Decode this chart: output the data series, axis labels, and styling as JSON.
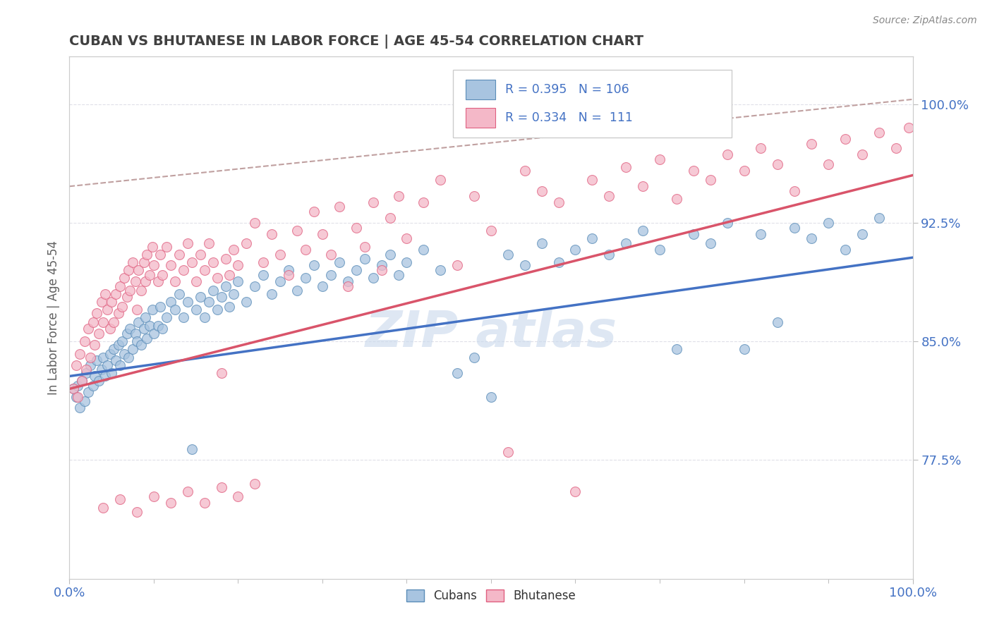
{
  "title": "CUBAN VS BHUTANESE IN LABOR FORCE | AGE 45-54 CORRELATION CHART",
  "source_text": "Source: ZipAtlas.com",
  "ylabel": "In Labor Force | Age 45-54",
  "xlim": [
    0.0,
    1.0
  ],
  "ylim": [
    0.7,
    1.03
  ],
  "right_yticks": [
    0.775,
    0.85,
    0.925,
    1.0
  ],
  "right_yticklabels": [
    "77.5%",
    "85.0%",
    "92.5%",
    "100.0%"
  ],
  "bottom_xticklabels": [
    "0.0%",
    "100.0%"
  ],
  "blue_color": "#A8C4E0",
  "blue_edge_color": "#5B8DB8",
  "pink_color": "#F4B8C8",
  "pink_edge_color": "#E06080",
  "blue_line_color": "#4472C4",
  "pink_line_color": "#D9546A",
  "dashed_line_color": "#C0A0A0",
  "watermark_color": "#C8D8EC",
  "background_color": "#FFFFFF",
  "title_color": "#404040",
  "axis_label_color": "#606060",
  "tick_color": "#4472C4",
  "grid_color": "#E0E0E8",
  "blue_reg": {
    "slope": 0.075,
    "intercept": 0.828
  },
  "pink_reg": {
    "slope": 0.135,
    "intercept": 0.82
  },
  "dashed_reg": {
    "slope": 0.055,
    "intercept": 0.948
  },
  "blue_scatter": [
    [
      0.005,
      0.82
    ],
    [
      0.008,
      0.815
    ],
    [
      0.01,
      0.822
    ],
    [
      0.012,
      0.808
    ],
    [
      0.015,
      0.825
    ],
    [
      0.018,
      0.812
    ],
    [
      0.02,
      0.83
    ],
    [
      0.022,
      0.818
    ],
    [
      0.025,
      0.835
    ],
    [
      0.028,
      0.822
    ],
    [
      0.03,
      0.828
    ],
    [
      0.032,
      0.838
    ],
    [
      0.035,
      0.825
    ],
    [
      0.038,
      0.832
    ],
    [
      0.04,
      0.84
    ],
    [
      0.042,
      0.828
    ],
    [
      0.045,
      0.835
    ],
    [
      0.048,
      0.842
    ],
    [
      0.05,
      0.83
    ],
    [
      0.052,
      0.845
    ],
    [
      0.055,
      0.838
    ],
    [
      0.058,
      0.848
    ],
    [
      0.06,
      0.835
    ],
    [
      0.062,
      0.85
    ],
    [
      0.065,
      0.842
    ],
    [
      0.068,
      0.855
    ],
    [
      0.07,
      0.84
    ],
    [
      0.072,
      0.858
    ],
    [
      0.075,
      0.845
    ],
    [
      0.078,
      0.855
    ],
    [
      0.08,
      0.85
    ],
    [
      0.082,
      0.862
    ],
    [
      0.085,
      0.848
    ],
    [
      0.088,
      0.858
    ],
    [
      0.09,
      0.865
    ],
    [
      0.092,
      0.852
    ],
    [
      0.095,
      0.86
    ],
    [
      0.098,
      0.87
    ],
    [
      0.1,
      0.855
    ],
    [
      0.105,
      0.86
    ],
    [
      0.108,
      0.872
    ],
    [
      0.11,
      0.858
    ],
    [
      0.115,
      0.865
    ],
    [
      0.12,
      0.875
    ],
    [
      0.125,
      0.87
    ],
    [
      0.13,
      0.88
    ],
    [
      0.135,
      0.865
    ],
    [
      0.14,
      0.875
    ],
    [
      0.145,
      0.782
    ],
    [
      0.15,
      0.87
    ],
    [
      0.155,
      0.878
    ],
    [
      0.16,
      0.865
    ],
    [
      0.165,
      0.875
    ],
    [
      0.17,
      0.882
    ],
    [
      0.175,
      0.87
    ],
    [
      0.18,
      0.878
    ],
    [
      0.185,
      0.885
    ],
    [
      0.19,
      0.872
    ],
    [
      0.195,
      0.88
    ],
    [
      0.2,
      0.888
    ],
    [
      0.21,
      0.875
    ],
    [
      0.22,
      0.885
    ],
    [
      0.23,
      0.892
    ],
    [
      0.24,
      0.88
    ],
    [
      0.25,
      0.888
    ],
    [
      0.26,
      0.895
    ],
    [
      0.27,
      0.882
    ],
    [
      0.28,
      0.89
    ],
    [
      0.29,
      0.898
    ],
    [
      0.3,
      0.885
    ],
    [
      0.31,
      0.892
    ],
    [
      0.32,
      0.9
    ],
    [
      0.33,
      0.888
    ],
    [
      0.34,
      0.895
    ],
    [
      0.35,
      0.902
    ],
    [
      0.36,
      0.89
    ],
    [
      0.37,
      0.898
    ],
    [
      0.38,
      0.905
    ],
    [
      0.39,
      0.892
    ],
    [
      0.4,
      0.9
    ],
    [
      0.42,
      0.908
    ],
    [
      0.44,
      0.895
    ],
    [
      0.46,
      0.83
    ],
    [
      0.48,
      0.84
    ],
    [
      0.5,
      0.815
    ],
    [
      0.52,
      0.905
    ],
    [
      0.54,
      0.898
    ],
    [
      0.56,
      0.912
    ],
    [
      0.58,
      0.9
    ],
    [
      0.6,
      0.908
    ],
    [
      0.62,
      0.915
    ],
    [
      0.64,
      0.905
    ],
    [
      0.66,
      0.912
    ],
    [
      0.68,
      0.92
    ],
    [
      0.7,
      0.908
    ],
    [
      0.72,
      0.845
    ],
    [
      0.74,
      0.918
    ],
    [
      0.76,
      0.912
    ],
    [
      0.78,
      0.925
    ],
    [
      0.8,
      0.845
    ],
    [
      0.82,
      0.918
    ],
    [
      0.84,
      0.862
    ],
    [
      0.86,
      0.922
    ],
    [
      0.88,
      0.915
    ],
    [
      0.9,
      0.925
    ],
    [
      0.92,
      0.908
    ],
    [
      0.94,
      0.918
    ],
    [
      0.96,
      0.928
    ]
  ],
  "pink_scatter": [
    [
      0.005,
      0.82
    ],
    [
      0.008,
      0.835
    ],
    [
      0.01,
      0.815
    ],
    [
      0.012,
      0.842
    ],
    [
      0.015,
      0.825
    ],
    [
      0.018,
      0.85
    ],
    [
      0.02,
      0.832
    ],
    [
      0.022,
      0.858
    ],
    [
      0.025,
      0.84
    ],
    [
      0.028,
      0.862
    ],
    [
      0.03,
      0.848
    ],
    [
      0.032,
      0.868
    ],
    [
      0.035,
      0.855
    ],
    [
      0.038,
      0.875
    ],
    [
      0.04,
      0.862
    ],
    [
      0.042,
      0.88
    ],
    [
      0.045,
      0.87
    ],
    [
      0.048,
      0.858
    ],
    [
      0.05,
      0.875
    ],
    [
      0.052,
      0.862
    ],
    [
      0.055,
      0.88
    ],
    [
      0.058,
      0.868
    ],
    [
      0.06,
      0.885
    ],
    [
      0.062,
      0.872
    ],
    [
      0.065,
      0.89
    ],
    [
      0.068,
      0.878
    ],
    [
      0.07,
      0.895
    ],
    [
      0.072,
      0.882
    ],
    [
      0.075,
      0.9
    ],
    [
      0.078,
      0.888
    ],
    [
      0.08,
      0.87
    ],
    [
      0.082,
      0.895
    ],
    [
      0.085,
      0.882
    ],
    [
      0.088,
      0.9
    ],
    [
      0.09,
      0.888
    ],
    [
      0.092,
      0.905
    ],
    [
      0.095,
      0.892
    ],
    [
      0.098,
      0.91
    ],
    [
      0.1,
      0.898
    ],
    [
      0.105,
      0.888
    ],
    [
      0.108,
      0.905
    ],
    [
      0.11,
      0.892
    ],
    [
      0.115,
      0.91
    ],
    [
      0.12,
      0.898
    ],
    [
      0.125,
      0.888
    ],
    [
      0.13,
      0.905
    ],
    [
      0.135,
      0.895
    ],
    [
      0.14,
      0.912
    ],
    [
      0.145,
      0.9
    ],
    [
      0.15,
      0.888
    ],
    [
      0.155,
      0.905
    ],
    [
      0.16,
      0.895
    ],
    [
      0.165,
      0.912
    ],
    [
      0.17,
      0.9
    ],
    [
      0.175,
      0.89
    ],
    [
      0.18,
      0.83
    ],
    [
      0.185,
      0.902
    ],
    [
      0.19,
      0.892
    ],
    [
      0.195,
      0.908
    ],
    [
      0.2,
      0.898
    ],
    [
      0.21,
      0.912
    ],
    [
      0.22,
      0.925
    ],
    [
      0.23,
      0.9
    ],
    [
      0.24,
      0.918
    ],
    [
      0.25,
      0.905
    ],
    [
      0.26,
      0.892
    ],
    [
      0.27,
      0.92
    ],
    [
      0.28,
      0.908
    ],
    [
      0.29,
      0.932
    ],
    [
      0.3,
      0.918
    ],
    [
      0.31,
      0.905
    ],
    [
      0.32,
      0.935
    ],
    [
      0.33,
      0.885
    ],
    [
      0.34,
      0.922
    ],
    [
      0.35,
      0.91
    ],
    [
      0.36,
      0.938
    ],
    [
      0.37,
      0.895
    ],
    [
      0.38,
      0.928
    ],
    [
      0.39,
      0.942
    ],
    [
      0.4,
      0.915
    ],
    [
      0.42,
      0.938
    ],
    [
      0.44,
      0.952
    ],
    [
      0.46,
      0.898
    ],
    [
      0.48,
      0.942
    ],
    [
      0.5,
      0.92
    ],
    [
      0.52,
      0.78
    ],
    [
      0.54,
      0.958
    ],
    [
      0.56,
      0.945
    ],
    [
      0.58,
      0.938
    ],
    [
      0.6,
      0.755
    ],
    [
      0.62,
      0.952
    ],
    [
      0.64,
      0.942
    ],
    [
      0.66,
      0.96
    ],
    [
      0.68,
      0.948
    ],
    [
      0.7,
      0.965
    ],
    [
      0.72,
      0.94
    ],
    [
      0.74,
      0.958
    ],
    [
      0.76,
      0.952
    ],
    [
      0.78,
      0.968
    ],
    [
      0.8,
      0.958
    ],
    [
      0.82,
      0.972
    ],
    [
      0.84,
      0.962
    ],
    [
      0.86,
      0.945
    ],
    [
      0.88,
      0.975
    ],
    [
      0.9,
      0.962
    ],
    [
      0.92,
      0.978
    ],
    [
      0.94,
      0.968
    ],
    [
      0.96,
      0.982
    ],
    [
      0.98,
      0.972
    ],
    [
      0.995,
      0.985
    ],
    [
      0.04,
      0.745
    ],
    [
      0.06,
      0.75
    ],
    [
      0.08,
      0.742
    ],
    [
      0.1,
      0.752
    ],
    [
      0.12,
      0.748
    ],
    [
      0.14,
      0.755
    ],
    [
      0.16,
      0.748
    ],
    [
      0.18,
      0.758
    ],
    [
      0.2,
      0.752
    ],
    [
      0.22,
      0.76
    ]
  ]
}
